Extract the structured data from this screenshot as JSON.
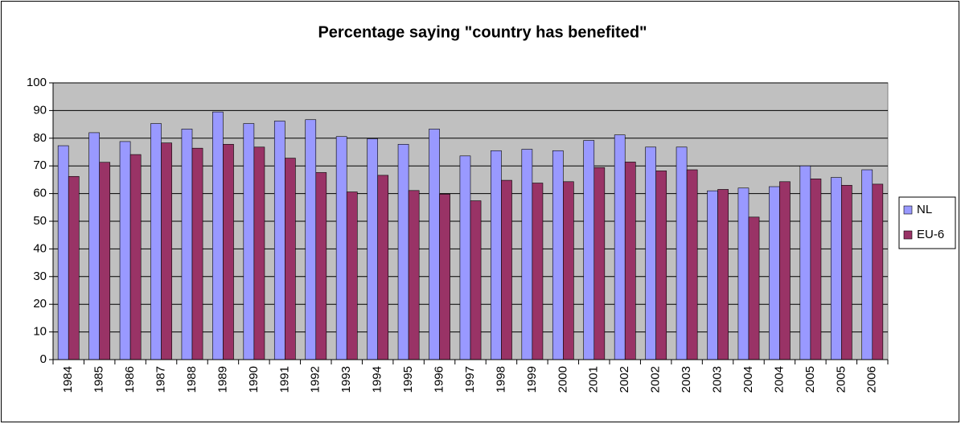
{
  "chart_data": {
    "type": "bar",
    "title": "Percentage saying \"country has benefited\"",
    "categories": [
      "1984",
      "1985",
      "1986",
      "1987",
      "1988",
      "1989",
      "1990",
      "1991",
      "1992",
      "1993",
      "1994",
      "1995",
      "1996",
      "1997",
      "1998",
      "1999",
      "2000",
      "2001",
      "2002",
      "2002",
      "2003",
      "2003",
      "2004",
      "2004",
      "2005",
      "2005",
      "2006"
    ],
    "series": [
      {
        "name": "NL",
        "color": "#9999ff",
        "values": [
          77.3,
          82,
          78.8,
          85.3,
          83.3,
          89.5,
          85.3,
          86.2,
          86.7,
          80.6,
          79.8,
          77.8,
          83.3,
          73.6,
          75.5,
          76,
          75.5,
          79.2,
          81.2,
          76.8,
          76.8,
          61,
          62,
          62.5,
          70,
          65.8,
          68.6
        ]
      },
      {
        "name": "EU-6",
        "color": "#993366",
        "values": [
          66.2,
          71.3,
          74.1,
          78.3,
          76.4,
          77.8,
          76.8,
          72.8,
          67.6,
          60.6,
          66.6,
          61.1,
          59.8,
          57.4,
          64.8,
          63.8,
          64.3,
          69.4,
          71.4,
          68.2,
          68.6,
          61.5,
          51.5,
          64.3,
          65.3,
          63,
          63.4
        ]
      }
    ],
    "ylim": [
      0,
      100
    ],
    "yticks": [
      0,
      10,
      20,
      30,
      40,
      50,
      60,
      70,
      80,
      90,
      100
    ],
    "grid": true,
    "legend": "right",
    "plot_background": "#c0c0c0"
  }
}
